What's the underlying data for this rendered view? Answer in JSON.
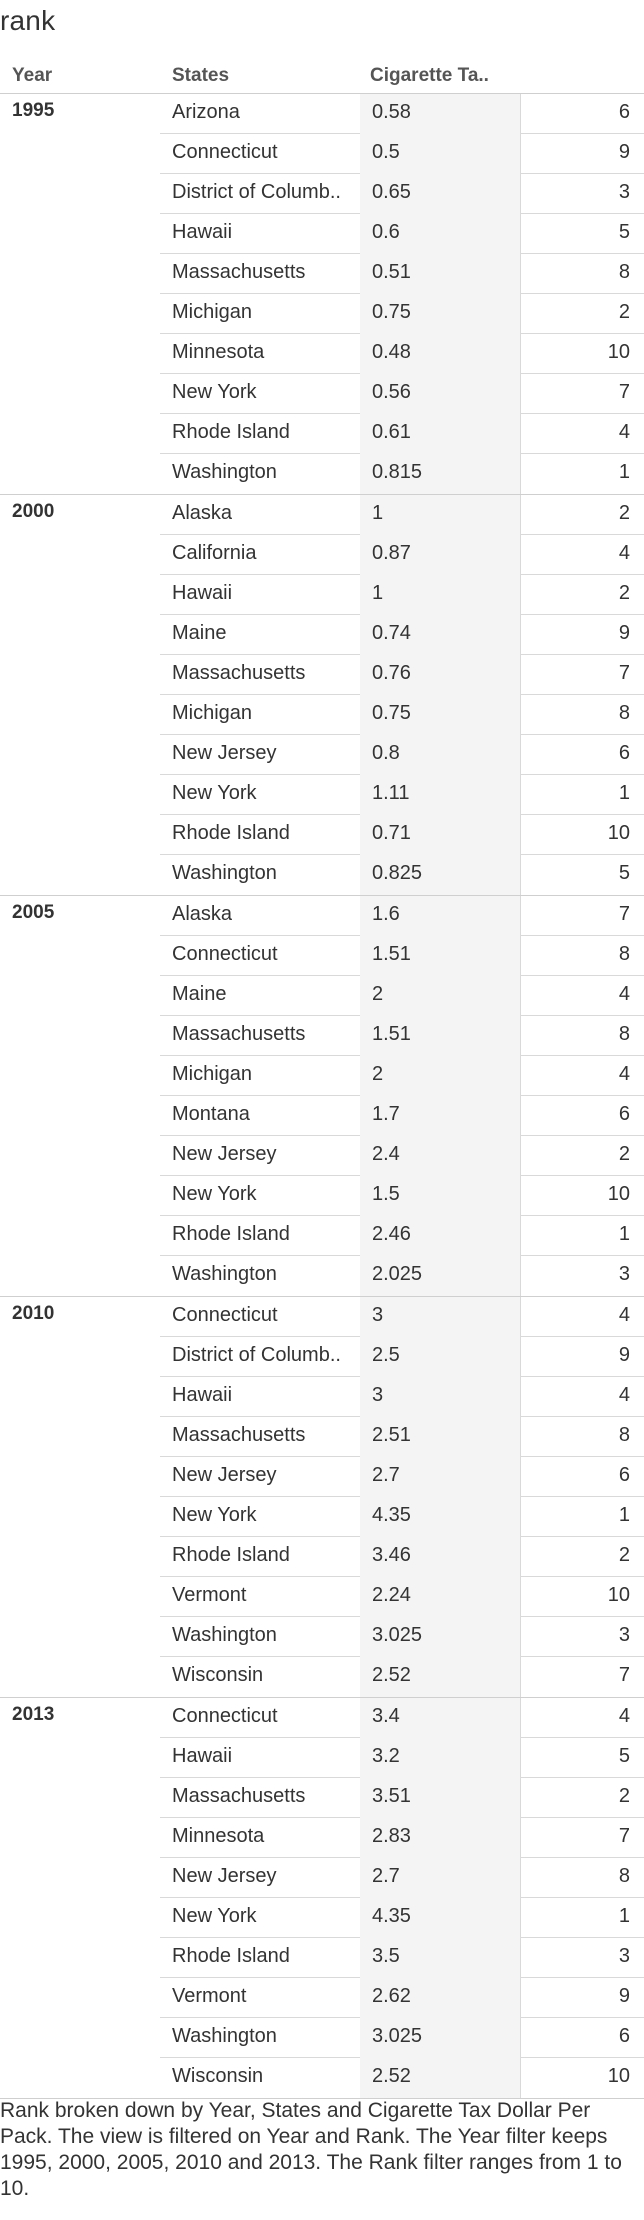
{
  "title": "rank",
  "headers": {
    "year": "Year",
    "states": "States",
    "tax": "Cigarette Ta.."
  },
  "chart_data": {
    "type": "table",
    "columns": [
      "Year",
      "States",
      "Cigarette Tax Dollar Per Pack",
      "Rank"
    ],
    "groups": [
      {
        "year": "1995",
        "rows": [
          {
            "state": "Arizona",
            "tax": "0.58",
            "rank": "6"
          },
          {
            "state": "Connecticut",
            "tax": "0.5",
            "rank": "9"
          },
          {
            "state": "District of Columb..",
            "tax": "0.65",
            "rank": "3"
          },
          {
            "state": "Hawaii",
            "tax": "0.6",
            "rank": "5"
          },
          {
            "state": "Massachusetts",
            "tax": "0.51",
            "rank": "8"
          },
          {
            "state": "Michigan",
            "tax": "0.75",
            "rank": "2"
          },
          {
            "state": "Minnesota",
            "tax": "0.48",
            "rank": "10"
          },
          {
            "state": "New York",
            "tax": "0.56",
            "rank": "7"
          },
          {
            "state": "Rhode Island",
            "tax": "0.61",
            "rank": "4"
          },
          {
            "state": "Washington",
            "tax": "0.815",
            "rank": "1"
          }
        ]
      },
      {
        "year": "2000",
        "rows": [
          {
            "state": "Alaska",
            "tax": "1",
            "rank": "2"
          },
          {
            "state": "California",
            "tax": "0.87",
            "rank": "4"
          },
          {
            "state": "Hawaii",
            "tax": "1",
            "rank": "2"
          },
          {
            "state": "Maine",
            "tax": "0.74",
            "rank": "9"
          },
          {
            "state": "Massachusetts",
            "tax": "0.76",
            "rank": "7"
          },
          {
            "state": "Michigan",
            "tax": "0.75",
            "rank": "8"
          },
          {
            "state": "New Jersey",
            "tax": "0.8",
            "rank": "6"
          },
          {
            "state": "New York",
            "tax": "1.11",
            "rank": "1"
          },
          {
            "state": "Rhode Island",
            "tax": "0.71",
            "rank": "10"
          },
          {
            "state": "Washington",
            "tax": "0.825",
            "rank": "5"
          }
        ]
      },
      {
        "year": "2005",
        "rows": [
          {
            "state": "Alaska",
            "tax": "1.6",
            "rank": "7"
          },
          {
            "state": "Connecticut",
            "tax": "1.51",
            "rank": "8"
          },
          {
            "state": "Maine",
            "tax": "2",
            "rank": "4"
          },
          {
            "state": "Massachusetts",
            "tax": "1.51",
            "rank": "8"
          },
          {
            "state": "Michigan",
            "tax": "2",
            "rank": "4"
          },
          {
            "state": "Montana",
            "tax": "1.7",
            "rank": "6"
          },
          {
            "state": "New Jersey",
            "tax": "2.4",
            "rank": "2"
          },
          {
            "state": "New York",
            "tax": "1.5",
            "rank": "10"
          },
          {
            "state": "Rhode Island",
            "tax": "2.46",
            "rank": "1"
          },
          {
            "state": "Washington",
            "tax": "2.025",
            "rank": "3"
          }
        ]
      },
      {
        "year": "2010",
        "rows": [
          {
            "state": "Connecticut",
            "tax": "3",
            "rank": "4"
          },
          {
            "state": "District of Columb..",
            "tax": "2.5",
            "rank": "9"
          },
          {
            "state": "Hawaii",
            "tax": "3",
            "rank": "4"
          },
          {
            "state": "Massachusetts",
            "tax": "2.51",
            "rank": "8"
          },
          {
            "state": "New Jersey",
            "tax": "2.7",
            "rank": "6"
          },
          {
            "state": "New York",
            "tax": "4.35",
            "rank": "1"
          },
          {
            "state": "Rhode Island",
            "tax": "3.46",
            "rank": "2"
          },
          {
            "state": "Vermont",
            "tax": "2.24",
            "rank": "10"
          },
          {
            "state": "Washington",
            "tax": "3.025",
            "rank": "3"
          },
          {
            "state": "Wisconsin",
            "tax": "2.52",
            "rank": "7"
          }
        ]
      },
      {
        "year": "2013",
        "rows": [
          {
            "state": "Connecticut",
            "tax": "3.4",
            "rank": "4"
          },
          {
            "state": "Hawaii",
            "tax": "3.2",
            "rank": "5"
          },
          {
            "state": "Massachusetts",
            "tax": "3.51",
            "rank": "2"
          },
          {
            "state": "Minnesota",
            "tax": "2.83",
            "rank": "7"
          },
          {
            "state": "New Jersey",
            "tax": "2.7",
            "rank": "8"
          },
          {
            "state": "New York",
            "tax": "4.35",
            "rank": "1"
          },
          {
            "state": "Rhode Island",
            "tax": "3.5",
            "rank": "3"
          },
          {
            "state": "Vermont",
            "tax": "2.62",
            "rank": "9"
          },
          {
            "state": "Washington",
            "tax": "3.025",
            "rank": "6"
          },
          {
            "state": "Wisconsin",
            "tax": "2.52",
            "rank": "10"
          }
        ]
      }
    ]
  },
  "caption": "Rank broken down by Year, States and Cigarette Tax Dollar Per Pack.  The view is filtered on Year and Rank. The Year filter keeps 1995, 2000, 2005, 2010 and 2013. The Rank filter ranges from 1 to 10."
}
